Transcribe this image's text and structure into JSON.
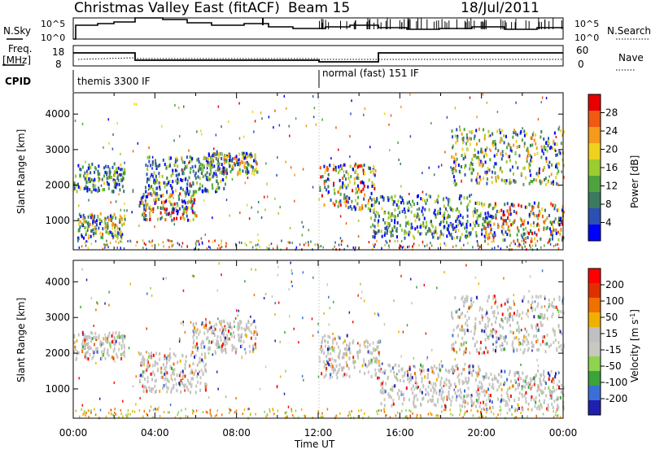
{
  "header": {
    "title": "Christmas Valley East (fitACF)",
    "beam": "Beam 15",
    "date": "18/Jul/2011"
  },
  "strips": {
    "nsky_label": "N.Sky",
    "nsky_ticks": [
      "10^5",
      "10^0"
    ],
    "nsearch_label": "N.Search",
    "nsearch_ticks": [
      "10^5",
      "10^0"
    ],
    "freq_label_line1": "Freq.",
    "freq_label_line2": "[MHz]",
    "freq_ticks": [
      "18",
      "8"
    ],
    "nave_label": "Nave",
    "nave_ticks": [
      "60",
      "0"
    ],
    "cpid_label": "CPID",
    "cpid_segments": [
      "themis 3300 IF",
      "normal (fast) 151 IF"
    ]
  },
  "colors": {
    "power_scale": [
      "#0000ff",
      "#2b4fb5",
      "#3a7a5f",
      "#4fa33f",
      "#9ccc2f",
      "#f0d21e",
      "#f59a1a",
      "#f05a12",
      "#e60000"
    ],
    "velocity_scale": [
      "#2020b0",
      "#3b6fd6",
      "#3aa33a",
      "#8fd34f",
      "#c8c8c0",
      "#c0c0c0",
      "#f0b000",
      "#f07000",
      "#e03000",
      "#ff0000"
    ],
    "axis": "#000000"
  },
  "chart_data": [
    {
      "type": "heatmap",
      "title": "Power",
      "ylabel": "Slant Range [km]",
      "xlabel": "",
      "ylim": [
        180,
        4600
      ],
      "yticks": [
        1000,
        2000,
        3000,
        4000
      ],
      "xticks": [
        "00:00",
        "04:00",
        "08:00",
        "12:00",
        "16:00",
        "20:00",
        "00:00"
      ],
      "colorbar_label": "Power [dB]",
      "colorbar_ticks": [
        "4",
        "8",
        "12",
        "16",
        "20",
        "24",
        "28"
      ],
      "bands_approx": [
        {
          "t_start_h": 0.0,
          "t_end_h": 2.5,
          "range_km": [
            1800,
            2600
          ]
        },
        {
          "t_start_h": 0.2,
          "t_end_h": 2.5,
          "range_km": [
            500,
            1200
          ]
        },
        {
          "t_start_h": 3.2,
          "t_end_h": 6.0,
          "range_km": [
            1000,
            1800
          ]
        },
        {
          "t_start_h": 3.5,
          "t_end_h": 7.5,
          "range_km": [
            1800,
            2800
          ]
        },
        {
          "t_start_h": 6.5,
          "t_end_h": 9.0,
          "range_km": [
            2300,
            2900
          ]
        },
        {
          "t_start_h": 12.0,
          "t_end_h": 14.8,
          "range_km": [
            1300,
            2600
          ]
        },
        {
          "t_start_h": 14.5,
          "t_end_h": 20.0,
          "range_km": [
            500,
            1700
          ]
        },
        {
          "t_start_h": 18.5,
          "t_end_h": 24.0,
          "range_km": [
            2000,
            3600
          ]
        },
        {
          "t_start_h": 20.0,
          "t_end_h": 24.0,
          "range_km": [
            400,
            1500
          ]
        }
      ]
    },
    {
      "type": "heatmap",
      "title": "Velocity",
      "ylabel": "Slant Range [km]",
      "xlabel": "Time UT",
      "ylim": [
        180,
        4600
      ],
      "yticks": [
        1000,
        2000,
        3000,
        4000
      ],
      "xticks": [
        "00:00",
        "04:00",
        "08:00",
        "12:00",
        "16:00",
        "20:00",
        "00:00"
      ],
      "colorbar_label": "Velocity [m s^-1]",
      "colorbar_ticks": [
        "200",
        "100",
        "50",
        "15",
        "-15",
        "-50",
        "-100",
        "-200"
      ],
      "bands_approx": [
        {
          "t_start_h": 0.0,
          "t_end_h": 2.5,
          "range_km": [
            1800,
            2600
          ]
        },
        {
          "t_start_h": 3.2,
          "t_end_h": 6.5,
          "range_km": [
            900,
            2000
          ]
        },
        {
          "t_start_h": 5.8,
          "t_end_h": 9.0,
          "range_km": [
            2000,
            2900
          ]
        },
        {
          "t_start_h": 12.0,
          "t_end_h": 15.0,
          "range_km": [
            1300,
            2500
          ]
        },
        {
          "t_start_h": 15.0,
          "t_end_h": 20.0,
          "range_km": [
            500,
            1700
          ]
        },
        {
          "t_start_h": 18.5,
          "t_end_h": 24.0,
          "range_km": [
            2000,
            3600
          ]
        },
        {
          "t_start_h": 20.0,
          "t_end_h": 24.0,
          "range_km": [
            400,
            1500
          ]
        }
      ]
    }
  ]
}
